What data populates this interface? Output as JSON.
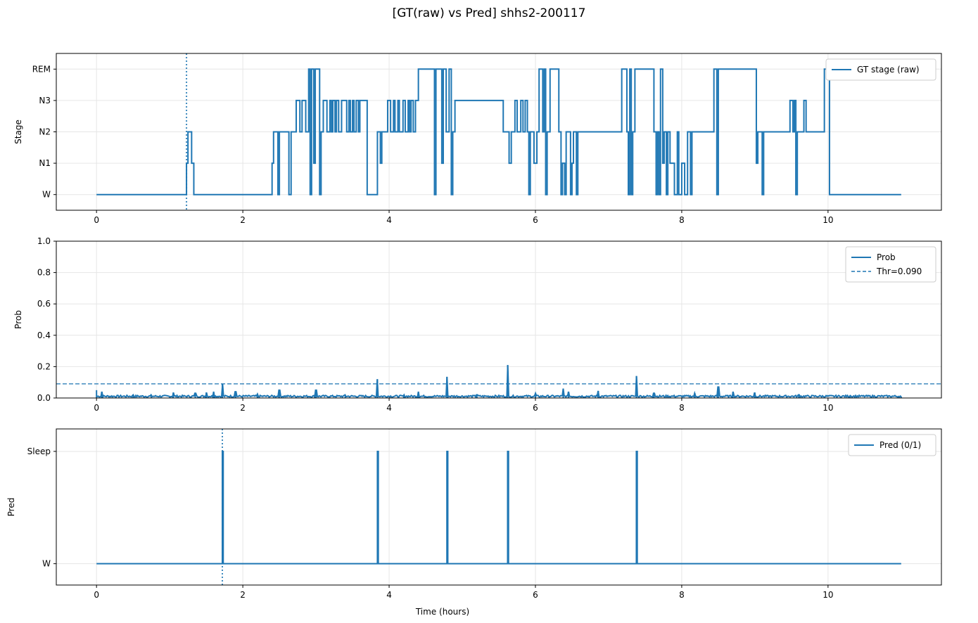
{
  "figure": {
    "title": "[GT(raw) vs Pred] shhs2-200117",
    "line_color": "#1f77b4",
    "grid_color": "#e6e6e6"
  },
  "chart_data": [
    {
      "type": "line",
      "panel": "stage",
      "ylabel": "Stage",
      "xlabel": "",
      "xlim": [
        -0.55,
        11.55
      ],
      "ylim": [
        -0.5,
        4.5
      ],
      "x_ticks": [
        0,
        2,
        4,
        6,
        8,
        10
      ],
      "y_ticks": [
        0,
        1,
        2,
        3,
        4
      ],
      "y_tick_labels": [
        "W",
        "N1",
        "N2",
        "N3",
        "REM"
      ],
      "grid": true,
      "legend_position": "upper-right",
      "series": [
        {
          "name": "GT stage (raw)",
          "style": "solid",
          "steps": [
            [
              0,
              0
            ],
            [
              1.23,
              1
            ],
            [
              1.25,
              2
            ],
            [
              1.3,
              1
            ],
            [
              1.33,
              0
            ],
            [
              2.4,
              1
            ],
            [
              2.42,
              2
            ],
            [
              2.48,
              0
            ],
            [
              2.5,
              2
            ],
            [
              2.63,
              0
            ],
            [
              2.66,
              2
            ],
            [
              2.73,
              3
            ],
            [
              2.78,
              2
            ],
            [
              2.81,
              3
            ],
            [
              2.86,
              2
            ],
            [
              2.9,
              4
            ],
            [
              2.92,
              0
            ],
            [
              2.94,
              4
            ],
            [
              2.97,
              1
            ],
            [
              2.99,
              4
            ],
            [
              3.05,
              0
            ],
            [
              3.07,
              2
            ],
            [
              3.1,
              3
            ],
            [
              3.15,
              2
            ],
            [
              3.19,
              3
            ],
            [
              3.21,
              2
            ],
            [
              3.23,
              3
            ],
            [
              3.26,
              2
            ],
            [
              3.28,
              3
            ],
            [
              3.31,
              2
            ],
            [
              3.35,
              3
            ],
            [
              3.42,
              2
            ],
            [
              3.45,
              3
            ],
            [
              3.47,
              2
            ],
            [
              3.5,
              3
            ],
            [
              3.52,
              2
            ],
            [
              3.55,
              3
            ],
            [
              3.58,
              2
            ],
            [
              3.6,
              3
            ],
            [
              3.7,
              0
            ],
            [
              3.84,
              2
            ],
            [
              3.88,
              1
            ],
            [
              3.9,
              2
            ],
            [
              3.98,
              3
            ],
            [
              4.02,
              2
            ],
            [
              4.06,
              3
            ],
            [
              4.08,
              2
            ],
            [
              4.12,
              3
            ],
            [
              4.14,
              2
            ],
            [
              4.19,
              3
            ],
            [
              4.22,
              2
            ],
            [
              4.26,
              3
            ],
            [
              4.28,
              2
            ],
            [
              4.3,
              3
            ],
            [
              4.33,
              2
            ],
            [
              4.36,
              3
            ],
            [
              4.4,
              4
            ],
            [
              4.62,
              0
            ],
            [
              4.64,
              4
            ],
            [
              4.72,
              1
            ],
            [
              4.74,
              4
            ],
            [
              4.78,
              2
            ],
            [
              4.82,
              4
            ],
            [
              4.85,
              0
            ],
            [
              4.87,
              2
            ],
            [
              4.9,
              3
            ],
            [
              5.56,
              2
            ],
            [
              5.64,
              1
            ],
            [
              5.67,
              2
            ],
            [
              5.72,
              3
            ],
            [
              5.75,
              2
            ],
            [
              5.8,
              3
            ],
            [
              5.83,
              2
            ],
            [
              5.86,
              3
            ],
            [
              5.89,
              2
            ],
            [
              5.91,
              0
            ],
            [
              5.93,
              2
            ],
            [
              5.98,
              1
            ],
            [
              6.02,
              2
            ],
            [
              6.05,
              4
            ],
            [
              6.1,
              2
            ],
            [
              6.12,
              4
            ],
            [
              6.14,
              0
            ],
            [
              6.16,
              2
            ],
            [
              6.2,
              4
            ],
            [
              6.32,
              2
            ],
            [
              6.35,
              0
            ],
            [
              6.37,
              1
            ],
            [
              6.4,
              0
            ],
            [
              6.42,
              2
            ],
            [
              6.48,
              0
            ],
            [
              6.5,
              1
            ],
            [
              6.52,
              2
            ],
            [
              6.56,
              0
            ],
            [
              6.58,
              2
            ],
            [
              7.18,
              4
            ],
            [
              7.25,
              2
            ],
            [
              7.27,
              0
            ],
            [
              7.29,
              4
            ],
            [
              7.31,
              0
            ],
            [
              7.33,
              2
            ],
            [
              7.36,
              4
            ],
            [
              7.62,
              2
            ],
            [
              7.65,
              0
            ],
            [
              7.67,
              2
            ],
            [
              7.69,
              0
            ],
            [
              7.71,
              4
            ],
            [
              7.74,
              1
            ],
            [
              7.76,
              2
            ],
            [
              7.79,
              0
            ],
            [
              7.81,
              2
            ],
            [
              7.84,
              1
            ],
            [
              7.9,
              0
            ],
            [
              7.94,
              2
            ],
            [
              7.96,
              0
            ],
            [
              8.0,
              1
            ],
            [
              8.04,
              0
            ],
            [
              8.08,
              2
            ],
            [
              8.12,
              0
            ],
            [
              8.14,
              2
            ],
            [
              8.44,
              4
            ],
            [
              8.48,
              0
            ],
            [
              8.5,
              4
            ],
            [
              9.02,
              1
            ],
            [
              9.04,
              2
            ],
            [
              9.1,
              0
            ],
            [
              9.12,
              2
            ],
            [
              9.48,
              3
            ],
            [
              9.52,
              2
            ],
            [
              9.54,
              3
            ],
            [
              9.56,
              0
            ],
            [
              9.58,
              2
            ],
            [
              9.67,
              3
            ],
            [
              9.7,
              2
            ],
            [
              9.95,
              4
            ],
            [
              10.02,
              0
            ],
            [
              11.0,
              0
            ]
          ]
        }
      ],
      "vlines": [
        {
          "x": 1.23,
          "style": "dotted"
        }
      ]
    },
    {
      "type": "line",
      "panel": "prob",
      "ylabel": "Prob",
      "xlabel": "",
      "xlim": [
        -0.55,
        11.55
      ],
      "ylim": [
        0.0,
        1.0
      ],
      "x_ticks": [
        0,
        2,
        4,
        6,
        8,
        10
      ],
      "y_ticks": [
        0.0,
        0.2,
        0.4,
        0.6,
        0.8,
        1.0
      ],
      "y_tick_labels": [
        "0.0",
        "0.2",
        "0.4",
        "0.6",
        "0.8",
        "1.0"
      ],
      "grid": true,
      "legend_position": "upper-right",
      "series": [
        {
          "name": "Prob",
          "style": "solid",
          "baseline": 0.005,
          "spikes": [
            [
              0.0,
              0.05
            ],
            [
              0.07,
              0.04
            ],
            [
              0.5,
              0.02
            ],
            [
              0.75,
              0.02
            ],
            [
              1.05,
              0.035
            ],
            [
              1.35,
              0.03
            ],
            [
              1.5,
              0.035
            ],
            [
              1.6,
              0.04
            ],
            [
              1.72,
              0.09
            ],
            [
              1.9,
              0.04
            ],
            [
              2.2,
              0.025
            ],
            [
              2.5,
              0.05
            ],
            [
              3.0,
              0.05
            ],
            [
              3.4,
              0.02
            ],
            [
              3.84,
              0.12
            ],
            [
              4.2,
              0.02
            ],
            [
              4.4,
              0.04
            ],
            [
              4.79,
              0.135
            ],
            [
              5.2,
              0.02
            ],
            [
              5.62,
              0.21
            ],
            [
              6.0,
              0.03
            ],
            [
              6.38,
              0.06
            ],
            [
              6.45,
              0.04
            ],
            [
              6.86,
              0.045
            ],
            [
              7.38,
              0.14
            ],
            [
              7.62,
              0.03
            ],
            [
              8.18,
              0.03
            ],
            [
              8.5,
              0.07
            ],
            [
              8.7,
              0.04
            ],
            [
              9.0,
              0.035
            ],
            [
              9.6,
              0.02
            ],
            [
              10.3,
              0.015
            ],
            [
              11.0,
              0.01
            ]
          ]
        },
        {
          "name": "Thr=0.090",
          "style": "dashed",
          "hline": 0.09
        }
      ]
    },
    {
      "type": "line",
      "panel": "pred",
      "ylabel": "Pred",
      "xlabel": "Time (hours)",
      "xlim": [
        -0.55,
        11.55
      ],
      "ylim": [
        -0.19,
        1.2
      ],
      "x_ticks": [
        0,
        2,
        4,
        6,
        8,
        10
      ],
      "y_ticks": [
        0,
        1
      ],
      "y_tick_labels": [
        "W",
        "Sleep"
      ],
      "grid": true,
      "legend_position": "upper-right",
      "series": [
        {
          "name": "Pred (0/1)",
          "style": "solid",
          "pulses": [
            1.72,
            3.84,
            4.79,
            5.62,
            7.38
          ],
          "pulse_width": 0.012,
          "x_end": 11.0
        }
      ],
      "vlines": [
        {
          "x": 1.72,
          "style": "dotted"
        }
      ]
    }
  ]
}
